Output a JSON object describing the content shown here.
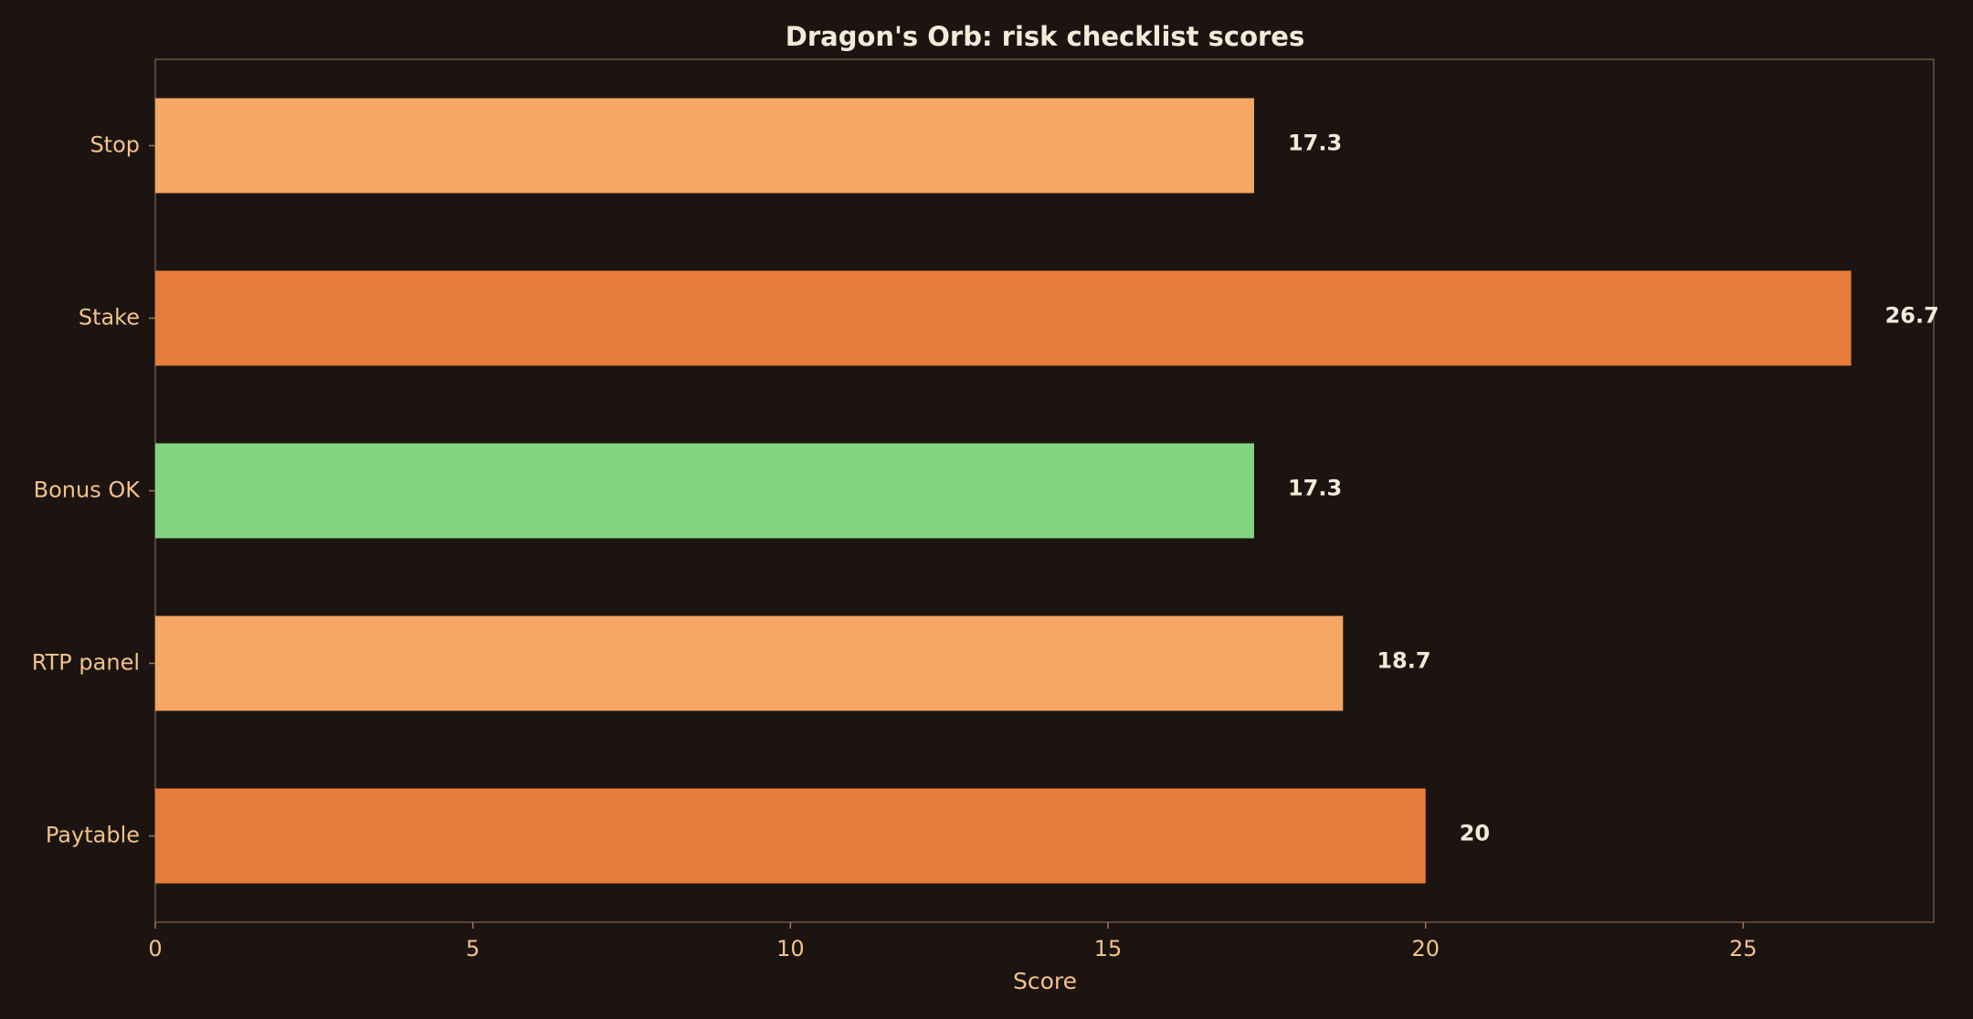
{
  "chart_data": {
    "type": "bar",
    "orientation": "horizontal",
    "title": "Dragon's Orb: risk checklist scores",
    "xlabel": "Score",
    "ylabel": "",
    "categories": [
      "Stop",
      "Stake",
      "Bonus OK",
      "RTP panel",
      "Paytable"
    ],
    "values": [
      17.3,
      26.7,
      17.3,
      18.7,
      20
    ],
    "value_labels": [
      "17.3",
      "26.7",
      "17.3",
      "18.7",
      "20"
    ],
    "bar_colors": [
      "#f5a765",
      "#e87c3b",
      "#82d480",
      "#f5a765",
      "#e87c3b"
    ],
    "xlim": [
      0,
      28
    ],
    "xticks": [
      0,
      5,
      10,
      15,
      20,
      25
    ],
    "grid": false,
    "legend": "none"
  },
  "colors": {
    "background": "#1c1411",
    "title_text": "#f5ead8",
    "axis_text": "#f3c28a",
    "frame": "#6e5442"
  }
}
